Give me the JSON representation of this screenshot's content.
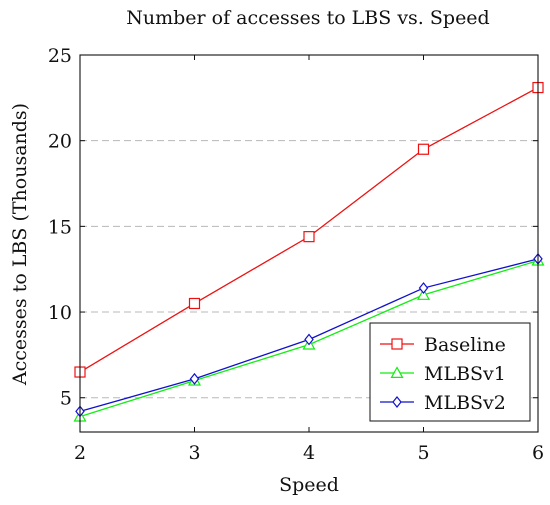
{
  "chart_data": {
    "type": "line",
    "title": "Number of accesses to LBS vs. Speed",
    "xlabel": "Speed",
    "ylabel": "Accesses to LBS (Thousands)",
    "x": [
      2,
      3,
      4,
      5,
      6
    ],
    "xlim": [
      2,
      6
    ],
    "ylim": [
      3,
      25
    ],
    "xticks": [
      "2",
      "3",
      "4",
      "5",
      "6"
    ],
    "yticks": [
      "5",
      "10",
      "15",
      "20",
      "25"
    ],
    "grid": "horizontal dashed",
    "legend_position": "bottom-right",
    "series": [
      {
        "name": "Baseline",
        "values": [
          6.5,
          10.5,
          14.4,
          19.5,
          23.1
        ],
        "color": "#ee1111",
        "marker": "square"
      },
      {
        "name": "MLBSv1",
        "values": [
          3.9,
          6.0,
          8.1,
          11.0,
          13.0
        ],
        "color": "#11ee11",
        "marker": "triangle"
      },
      {
        "name": "MLBSv2",
        "values": [
          4.2,
          6.1,
          8.4,
          11.4,
          13.1
        ],
        "color": "#1111cc",
        "marker": "diamond"
      }
    ]
  }
}
